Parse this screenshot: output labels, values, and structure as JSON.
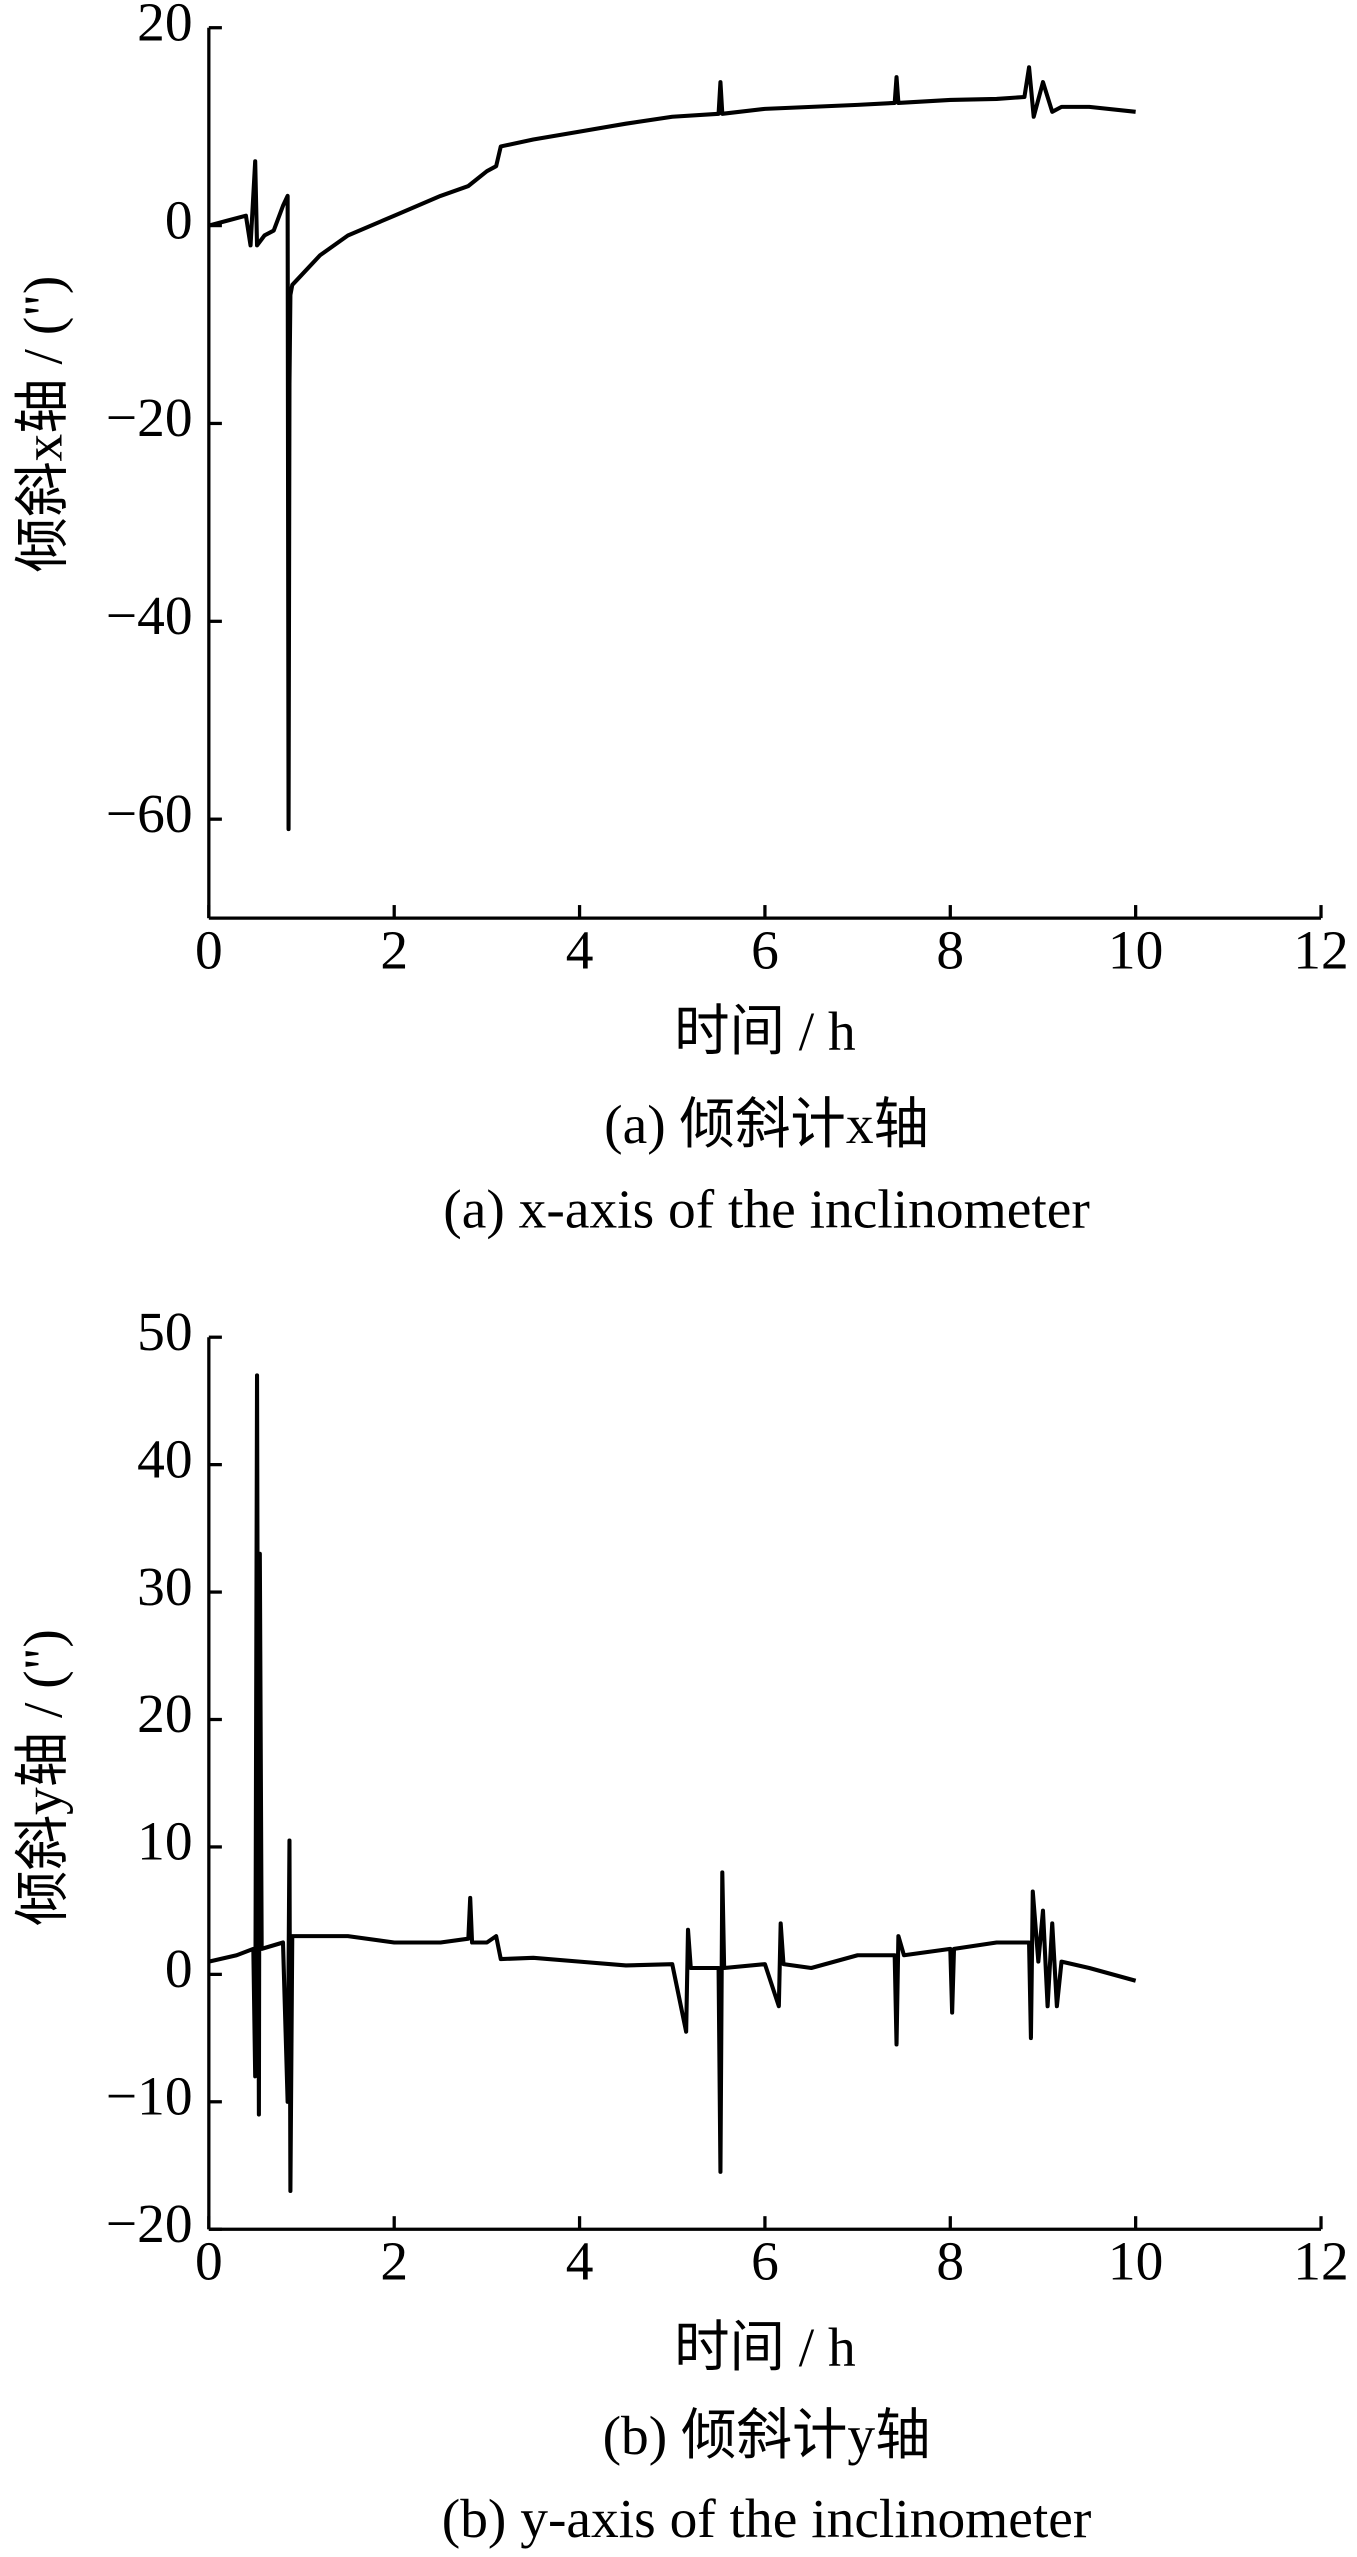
{
  "chart_data": [
    {
      "type": "line",
      "ylabel": "倾斜x轴 / (\")",
      "xlabel": "时间 / h",
      "caption": "(a) 倾斜计x轴",
      "caption_en": "(a) x-axis of the inclinometer",
      "xlim": [
        0,
        12
      ],
      "xticks": [
        0,
        2,
        4,
        6,
        8,
        10,
        12
      ],
      "ylim": [
        -70,
        20
      ],
      "yticks": [
        {
          "value": -60,
          "label": "−60"
        },
        {
          "value": -40,
          "label": "−40"
        },
        {
          "value": -20,
          "label": "−20"
        },
        0,
        20
      ],
      "x": [
        0,
        0.2,
        0.4,
        0.45,
        0.5,
        0.52,
        0.6,
        0.7,
        0.8,
        0.85,
        0.86,
        0.87,
        0.88,
        0.9,
        1.0,
        1.2,
        1.5,
        2.0,
        2.5,
        2.8,
        3.0,
        3.1,
        3.15,
        3.5,
        4.0,
        4.5,
        5.0,
        5.5,
        5.52,
        5.54,
        6.0,
        6.5,
        7.0,
        7.4,
        7.42,
        7.44,
        8.0,
        8.5,
        8.8,
        8.85,
        8.9,
        9.0,
        9.1,
        9.2,
        9.5,
        10.0
      ],
      "series": [
        {
          "color": "#000000",
          "values": [
            0,
            0.5,
            1,
            -2,
            6.5,
            -2,
            -1,
            -0.5,
            2,
            3,
            -61,
            -16,
            -7,
            -6,
            -5,
            -3,
            -1,
            1,
            3,
            4,
            5.5,
            6,
            8,
            8.7,
            9.5,
            10.3,
            11,
            11.3,
            14.5,
            11.3,
            11.8,
            12,
            12.2,
            12.4,
            15,
            12.4,
            12.7,
            12.8,
            13,
            16,
            11,
            14.5,
            11.5,
            12,
            12,
            11.5
          ]
        }
      ]
    },
    {
      "type": "line",
      "ylabel": "倾斜y轴 / (\")",
      "xlabel": "时间 / h",
      "caption": "(b) 倾斜计y轴",
      "caption_en": "(b) y-axis of the inclinometer",
      "xlim": [
        0,
        12
      ],
      "xticks": [
        0,
        2,
        4,
        6,
        8,
        10,
        12
      ],
      "ylim": [
        -20,
        50
      ],
      "yticks": [
        {
          "value": -20,
          "label": "−20"
        },
        {
          "value": -10,
          "label": "−10"
        },
        0,
        10,
        20,
        30,
        40,
        50
      ],
      "x": [
        0,
        0.3,
        0.48,
        0.5,
        0.52,
        0.54,
        0.55,
        0.57,
        0.8,
        0.85,
        0.87,
        0.88,
        0.9,
        1.0,
        1.5,
        2.0,
        2.5,
        2.8,
        2.82,
        2.84,
        3.0,
        3.1,
        3.15,
        3.5,
        4.0,
        4.5,
        5.0,
        5.15,
        5.17,
        5.2,
        5.5,
        5.52,
        5.54,
        5.56,
        6.0,
        6.15,
        6.17,
        6.2,
        6.5,
        7.0,
        7.4,
        7.42,
        7.44,
        7.5,
        8.0,
        8.02,
        8.04,
        8.5,
        8.85,
        8.87,
        8.89,
        8.95,
        9.0,
        9.05,
        9.1,
        9.15,
        9.2,
        9.5,
        10.0
      ],
      "series": [
        {
          "color": "#000000",
          "values": [
            1,
            1.5,
            2,
            -8,
            47,
            -11,
            33,
            2,
            2.5,
            -10,
            10.5,
            -17,
            3,
            3,
            3,
            2.5,
            2.5,
            2.8,
            6,
            2.5,
            2.5,
            3,
            1.2,
            1.3,
            1,
            0.7,
            0.8,
            -4.5,
            3.5,
            0.5,
            0.5,
            -15.5,
            8,
            0.5,
            0.8,
            -2.5,
            4,
            0.8,
            0.5,
            1.5,
            1.5,
            -5.5,
            3,
            1.5,
            2,
            -3,
            2,
            2.5,
            2.5,
            -5,
            6.5,
            1,
            5,
            -2.5,
            4,
            -2.5,
            1,
            0.5,
            -0.5
          ]
        }
      ]
    }
  ]
}
